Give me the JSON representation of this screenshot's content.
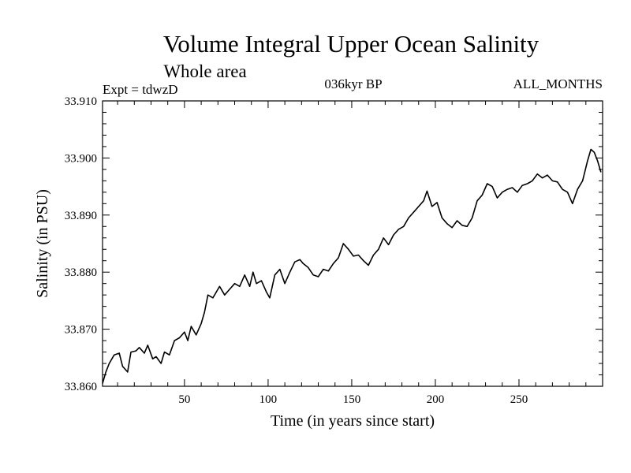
{
  "chart_data": {
    "type": "line",
    "title": "Volume Integral Upper Ocean Salinity",
    "subtitle": "Whole area",
    "header_left": "Expt = tdwzD",
    "header_center": "036kyr BP",
    "header_right": "ALL_MONTHS",
    "xlabel": "Time (in years since start)",
    "ylabel": "Salinity (in PSU)",
    "xlim": [
      1,
      300
    ],
    "ylim": [
      33.86,
      33.91
    ],
    "xticks": [
      50,
      100,
      150,
      200,
      250
    ],
    "xtick_labels": [
      "50",
      "100",
      "150",
      "200",
      "250"
    ],
    "yticks": [
      33.86,
      33.87,
      33.88,
      33.89,
      33.9,
      33.91
    ],
    "ytick_labels": [
      "33.860",
      "33.870",
      "33.880",
      "33.890",
      "33.900",
      "33.910"
    ],
    "grid": false,
    "series": [
      {
        "color": "#000000",
        "x": [
          1,
          3,
          5,
          8,
          11,
          13,
          16,
          18,
          21,
          23,
          26,
          28,
          31,
          33,
          36,
          38,
          41,
          44,
          47,
          50,
          52,
          54,
          57,
          60,
          62,
          64,
          67,
          69,
          71,
          74,
          77,
          80,
          83,
          86,
          89,
          91,
          93,
          96,
          99,
          101,
          104,
          107,
          110,
          113,
          116,
          119,
          121,
          124,
          127,
          130,
          133,
          136,
          139,
          142,
          145,
          148,
          151,
          154,
          157,
          160,
          163,
          166,
          169,
          172,
          175,
          178,
          181,
          184,
          187,
          190,
          193,
          195,
          198,
          201,
          204,
          207,
          210,
          213,
          216,
          219,
          222,
          225,
          228,
          231,
          234,
          237,
          240,
          243,
          246,
          249,
          252,
          255,
          258,
          261,
          264,
          267,
          270,
          273,
          276,
          279,
          282,
          285,
          288,
          291,
          293,
          295,
          297,
          299
        ],
        "y": [
          33.8605,
          33.8625,
          33.864,
          33.8655,
          33.8658,
          33.8635,
          33.8625,
          33.866,
          33.8662,
          33.8668,
          33.8658,
          33.8672,
          33.8648,
          33.8652,
          33.864,
          33.866,
          33.8655,
          33.868,
          33.8685,
          33.8695,
          33.868,
          33.8705,
          33.869,
          33.871,
          33.873,
          33.876,
          33.8755,
          33.8765,
          33.8775,
          33.876,
          33.877,
          33.878,
          33.8775,
          33.8795,
          33.8775,
          33.88,
          33.878,
          33.8785,
          33.8765,
          33.8755,
          33.8795,
          33.8805,
          33.878,
          33.88,
          33.8818,
          33.8822,
          33.8815,
          33.8808,
          33.8795,
          33.8792,
          33.8805,
          33.8802,
          33.8815,
          33.8825,
          33.885,
          33.884,
          33.8828,
          33.883,
          33.882,
          33.8812,
          33.883,
          33.884,
          33.886,
          33.8848,
          33.8865,
          33.8875,
          33.888,
          33.8895,
          33.8905,
          33.8915,
          33.8925,
          33.8942,
          33.8915,
          33.8922,
          33.8895,
          33.8885,
          33.8878,
          33.889,
          33.8882,
          33.888,
          33.8895,
          33.8925,
          33.8935,
          33.8955,
          33.895,
          33.893,
          33.894,
          33.8945,
          33.8948,
          33.894,
          33.8952,
          33.8955,
          33.896,
          33.8972,
          33.8965,
          33.897,
          33.896,
          33.8958,
          33.8945,
          33.894,
          33.892,
          33.8945,
          33.896,
          33.8995,
          33.9015,
          33.901,
          33.8995,
          33.8975
        ]
      }
    ]
  }
}
